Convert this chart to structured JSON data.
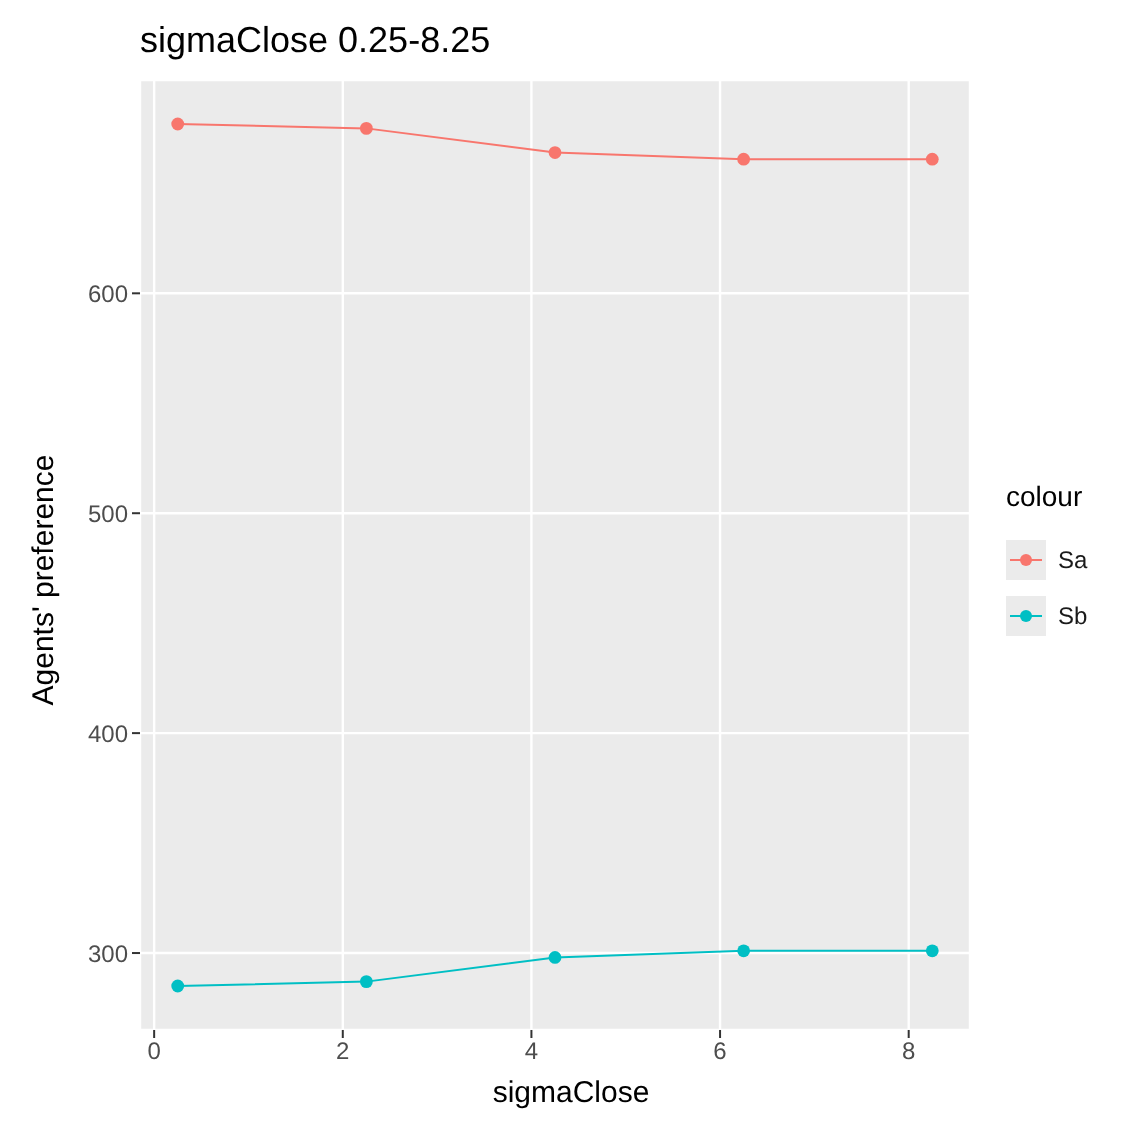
{
  "chart_data": {
    "type": "line",
    "title": "sigmaClose 0.25-8.25",
    "xlabel": "sigmaClose",
    "ylabel": "Agents' preference",
    "legend_title": "colour",
    "x": [
      0.25,
      2.25,
      4.25,
      6.25,
      8.25
    ],
    "series": [
      {
        "name": "Sa",
        "color": "#f8766d",
        "values": [
          677,
          675,
          664,
          661,
          661
        ]
      },
      {
        "name": "Sb",
        "color": "#00bfc4",
        "values": [
          285,
          287,
          298,
          301,
          301
        ]
      }
    ],
    "xlim": [
      -0.15,
      8.65
    ],
    "xticks": [
      0,
      2,
      4,
      6,
      8
    ],
    "ylim": [
      265,
      697
    ],
    "yticks": [
      300,
      400,
      500,
      600
    ],
    "grid": true,
    "legend": "right",
    "marker": "circle",
    "line_style": "solid"
  }
}
